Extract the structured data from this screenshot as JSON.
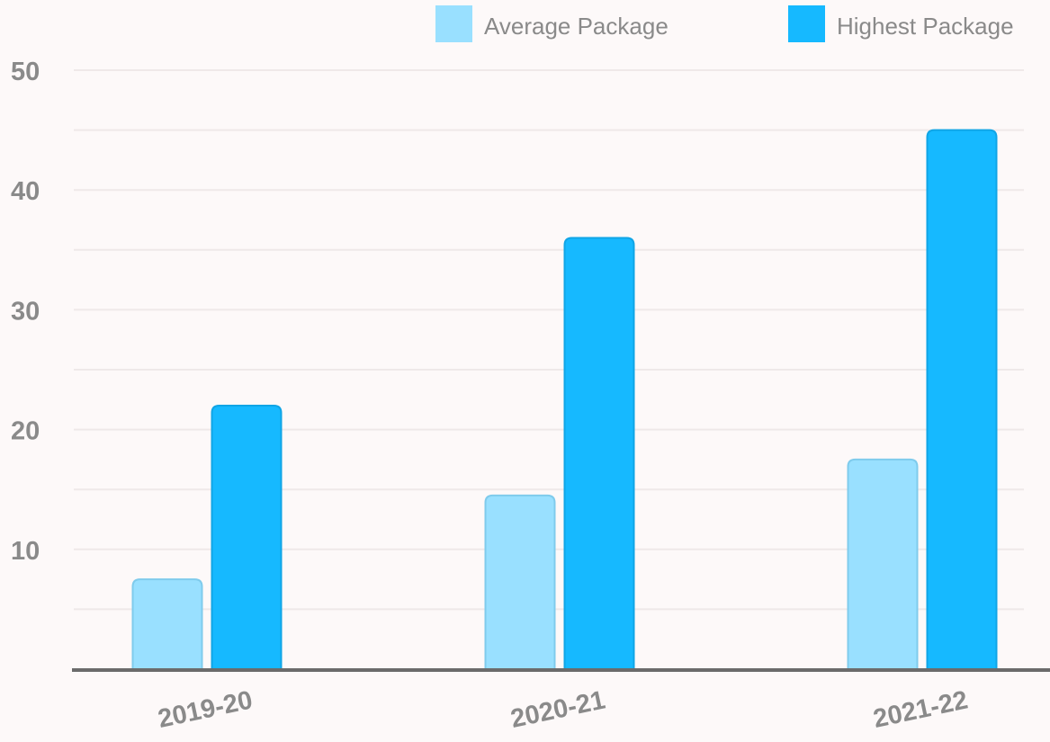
{
  "chart_data": {
    "type": "bar",
    "categories": [
      "2019-20",
      "2020-21",
      "2021-22"
    ],
    "series": [
      {
        "name": "Average Package",
        "values": [
          7.5,
          14.5,
          17.5
        ],
        "color": "#99e0ff",
        "stroke": "#7fcbec"
      },
      {
        "name": "Highest Package",
        "values": [
          22,
          36,
          45
        ],
        "color": "#16b9ff",
        "stroke": "#10a5e6"
      }
    ],
    "ylim": [
      0,
      50
    ],
    "y_ticks": [
      10,
      20,
      30,
      40,
      50
    ],
    "y_tick_labels": [
      "10",
      "20",
      "30",
      "40",
      "50"
    ],
    "grid": true,
    "legend": "top-right",
    "title": "",
    "xlabel": "",
    "ylabel": ""
  }
}
